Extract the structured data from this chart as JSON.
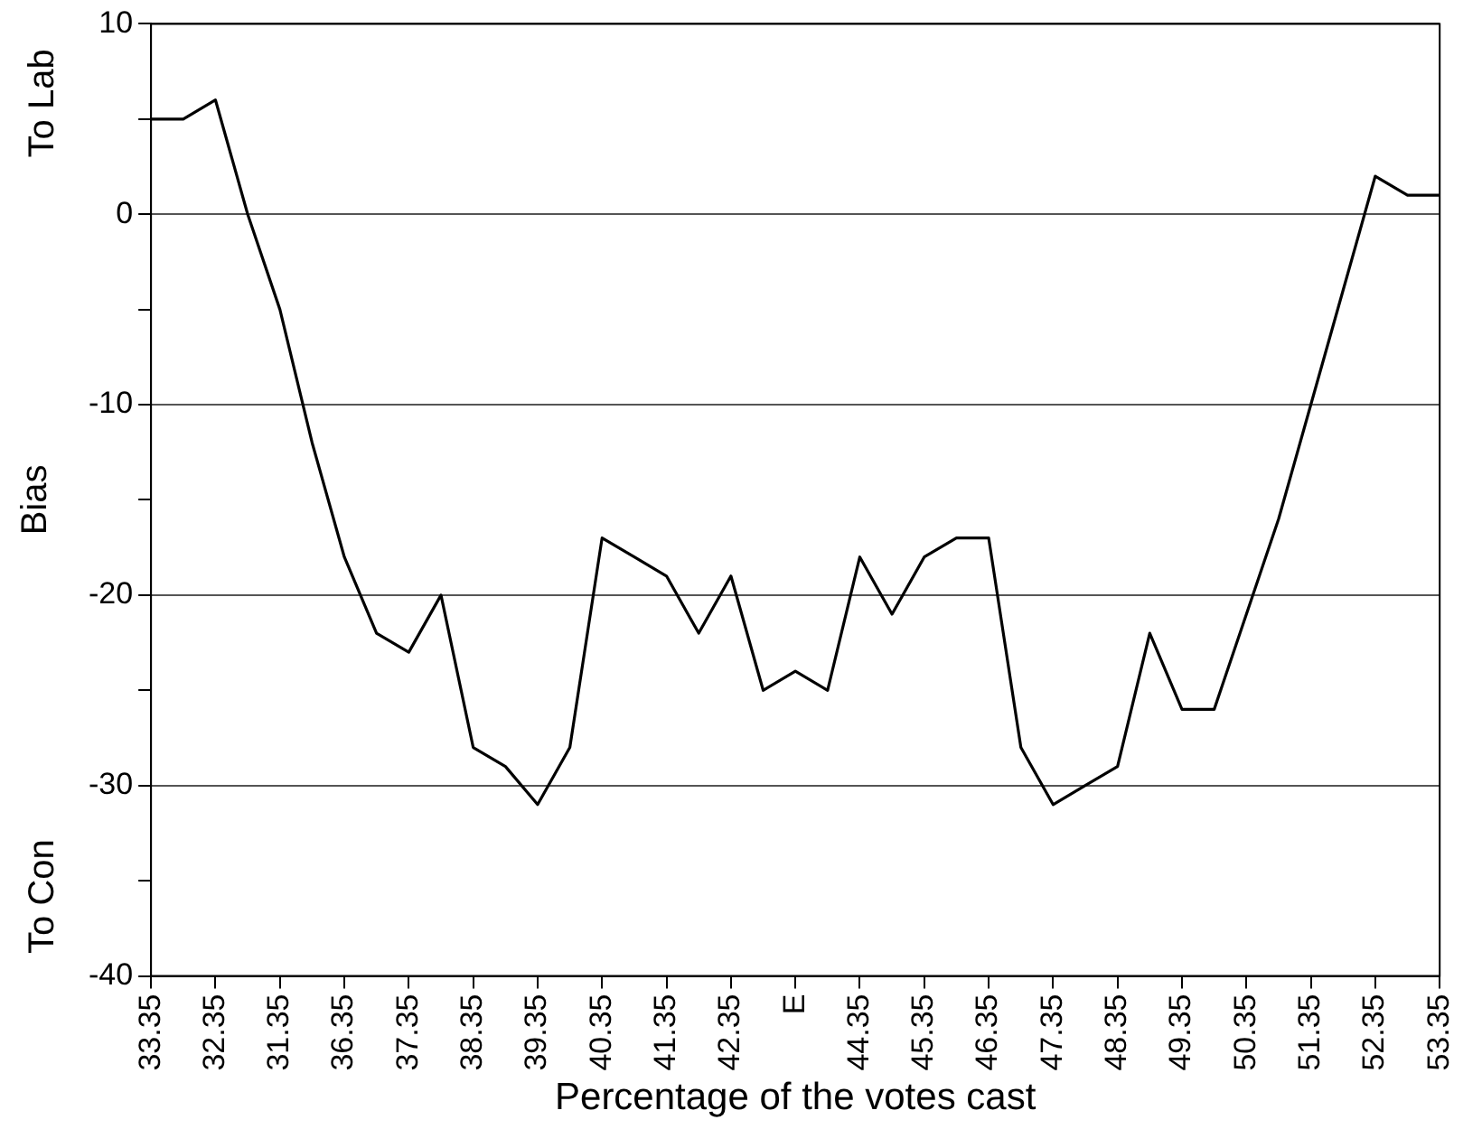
{
  "chart_data": {
    "type": "line",
    "xlabel": "Percentage of the votes cast",
    "ylabel": "Bias",
    "annotations": [
      "To Lab",
      "To Con"
    ],
    "categories": [
      "33.35",
      null,
      "32.35",
      null,
      "31.35",
      null,
      "36.35",
      null,
      "37.35",
      null,
      "38.35",
      null,
      "39.35",
      null,
      "40.35",
      null,
      "41.35",
      null,
      "42.35",
      null,
      "E",
      null,
      "44.35",
      null,
      "45.35",
      null,
      "46.35",
      null,
      "47.35",
      null,
      "48.35",
      null,
      "49.35",
      null,
      "50.35",
      null,
      "51.35",
      null,
      "52.35",
      null,
      "53.35"
    ],
    "series": [
      {
        "color": "#000000",
        "values": [
          5,
          5,
          6,
          0,
          -5,
          -12,
          -18,
          -22,
          -23,
          -20,
          -28,
          -29,
          -31,
          -28,
          -17,
          -18,
          -19,
          -22,
          -19,
          -25,
          -24,
          -25,
          -18,
          -21,
          -18,
          -17,
          -17,
          -28,
          -31,
          -30,
          -29,
          -22,
          -26,
          -26,
          -21,
          -16,
          -10,
          -4,
          2,
          1,
          1
        ]
      }
    ],
    "ylim": [
      -40,
      10
    ],
    "yticks": [
      -40,
      {
        "value": -35,
        "label": null
      },
      -30,
      {
        "value": -25,
        "label": null
      },
      -20,
      {
        "value": -15,
        "label": null
      },
      -10,
      {
        "value": -5,
        "label": null
      },
      0,
      {
        "value": 5,
        "label": null
      },
      10
    ],
    "grid": "y",
    "legend": false,
    "marker": "none",
    "line_style": "solid"
  }
}
